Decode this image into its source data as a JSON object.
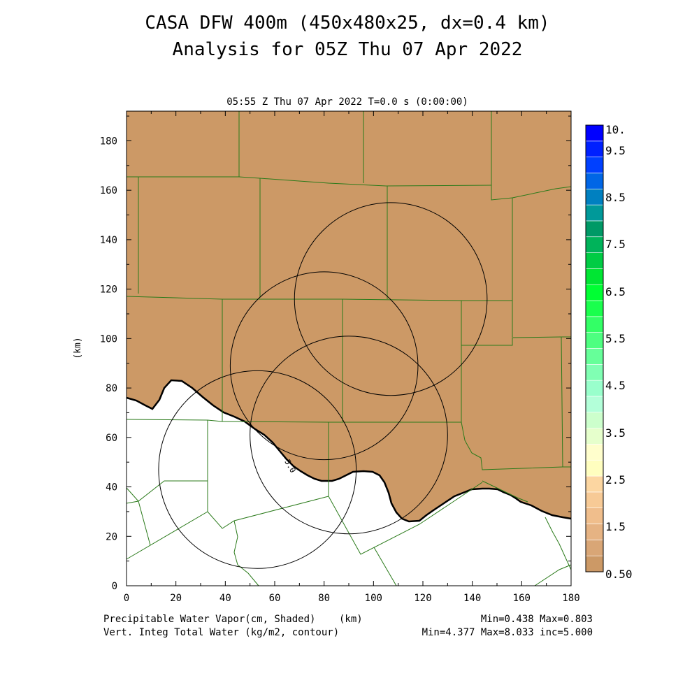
{
  "header": {
    "title_line1": "CASA DFW 400m (450x480x25, dx=0.4 km)",
    "title_line2": "Analysis for 05Z Thu 07 Apr 2022",
    "subtitle": "05:55 Z Thu 07 Apr 2022   T=0.0 s (0:00:00)"
  },
  "chart_data": {
    "type": "heatmap",
    "title": "CASA DFW 400m (450x480x25, dx=0.4 km)",
    "subtitle": "Analysis for 05Z Thu 07 Apr 2022",
    "time_label": "05:55 Z Thu 07 Apr 2022   T=0.0 s (0:00:00)",
    "xlabel": "(km)",
    "ylabel": "(km)",
    "xlim": [
      0,
      180
    ],
    "ylim": [
      0,
      192
    ],
    "x_ticks": [
      "0",
      "20",
      "40",
      "60",
      "80",
      "100",
      "120",
      "140",
      "160",
      "180"
    ],
    "x_tick_values": [
      0,
      20,
      40,
      60,
      80,
      100,
      120,
      140,
      160,
      180
    ],
    "y_ticks": [
      "0",
      "20",
      "40",
      "60",
      "80",
      "100",
      "120",
      "140",
      "160",
      "180"
    ],
    "y_tick_values": [
      0,
      20,
      40,
      60,
      80,
      100,
      120,
      140,
      160,
      180
    ],
    "shaded_field": {
      "name": "Precipitable Water Vapor(cm, Shaded)",
      "min": 0.438,
      "max": 0.803,
      "region_color": "#cc9966"
    },
    "contour_field": {
      "name": "Vert. Integ Total Water (kg/m2, contour)",
      "min": 4.377,
      "max": 8.033,
      "inc": 5.0,
      "contour_label": "5.0"
    },
    "stats": {
      "shaded": "Min=0.438  Max=0.803",
      "contour": "Min=4.377 Max=8.033 inc=5.000"
    },
    "radar_rings": [
      {
        "cx": 53,
        "cy": 47,
        "r": 40
      },
      {
        "cx": 80,
        "cy": 89,
        "r": 38
      },
      {
        "cx": 90,
        "cy": 61,
        "r": 40
      },
      {
        "cx": 107,
        "cy": 116,
        "r": 39
      }
    ],
    "colorbar": {
      "labels": [
        "10.",
        "9.5",
        "8.5",
        "7.5",
        "6.5",
        "5.5",
        "4.5",
        "3.5",
        "2.5",
        "1.5",
        "0.50"
      ],
      "colors": [
        "#cc9966",
        "#d9a676",
        "#e6b383",
        "#f0be8c",
        "#f7ca96",
        "#fcd6a1",
        "#fffebf",
        "#fffecc",
        "#e6ffcc",
        "#ccffcc",
        "#b3ffd9",
        "#99ffcc",
        "#80ffb3",
        "#66ff99",
        "#4dff80",
        "#33ff66",
        "#1aff4d",
        "#00ff33",
        "#00e633",
        "#00cc44",
        "#00b35a",
        "#009966",
        "#009999",
        "#0080c0",
        "#0066e6",
        "#0040ff",
        "#0020ff",
        "#0000ff"
      ]
    }
  },
  "footer": {
    "left_line1": "Precipitable Water Vapor(cm, Shaded)",
    "left_line2": "Vert. Integ Total Water (kg/m2, contour)",
    "unit": "(km)",
    "right_line1": "Min=0.438  Max=0.803",
    "right_line2": "Min=4.377 Max=8.033 inc=5.000"
  }
}
